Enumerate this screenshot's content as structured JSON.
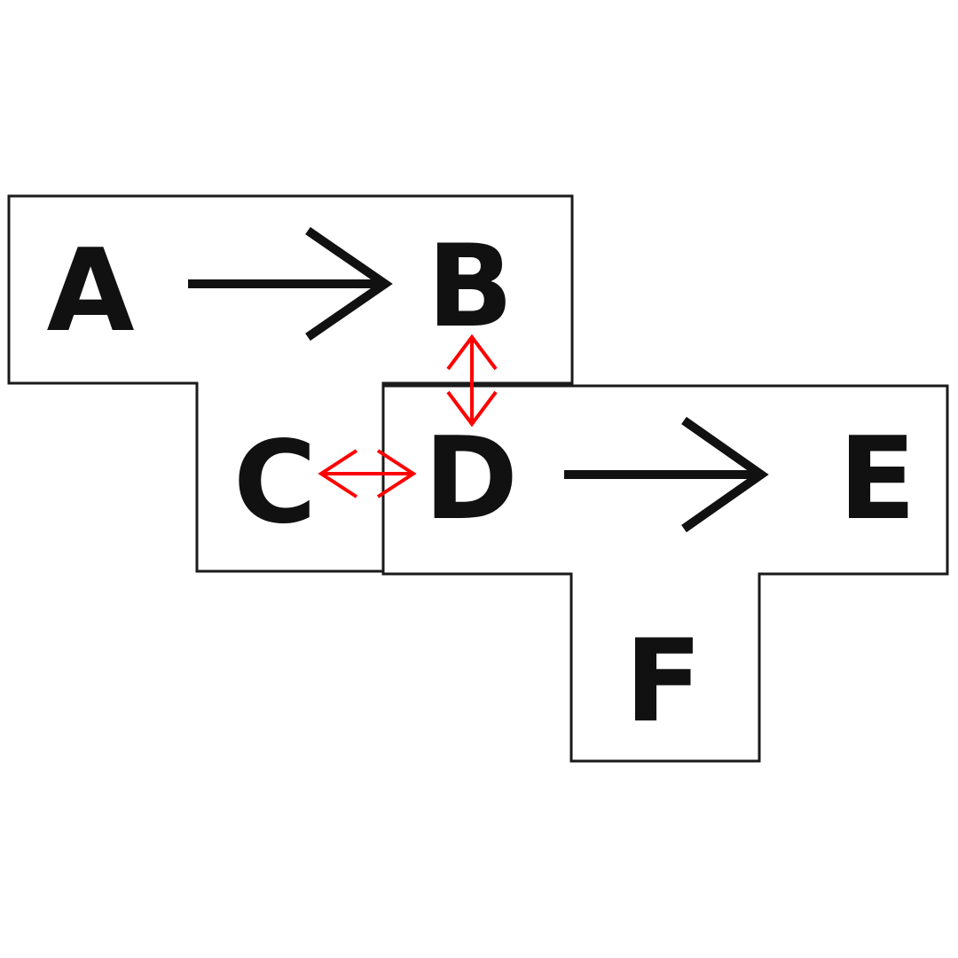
{
  "diagram": {
    "nodes": {
      "a": "A",
      "b": "B",
      "c": "C",
      "d": "D",
      "e": "E",
      "f": "F"
    },
    "black_arrows": [
      {
        "from": "A",
        "to": "B",
        "style": "one-way"
      },
      {
        "from": "D",
        "to": "E",
        "style": "one-way"
      }
    ],
    "red_arrows": [
      {
        "between": [
          "B",
          "D"
        ],
        "style": "two-way"
      },
      {
        "between": [
          "C",
          "D"
        ],
        "style": "two-way"
      }
    ],
    "colors": {
      "outline": "#1a1a1a",
      "letters": "#111111",
      "black_arrow": "#111111",
      "red_arrow": "#ff0000",
      "background": "#ffffff"
    }
  }
}
